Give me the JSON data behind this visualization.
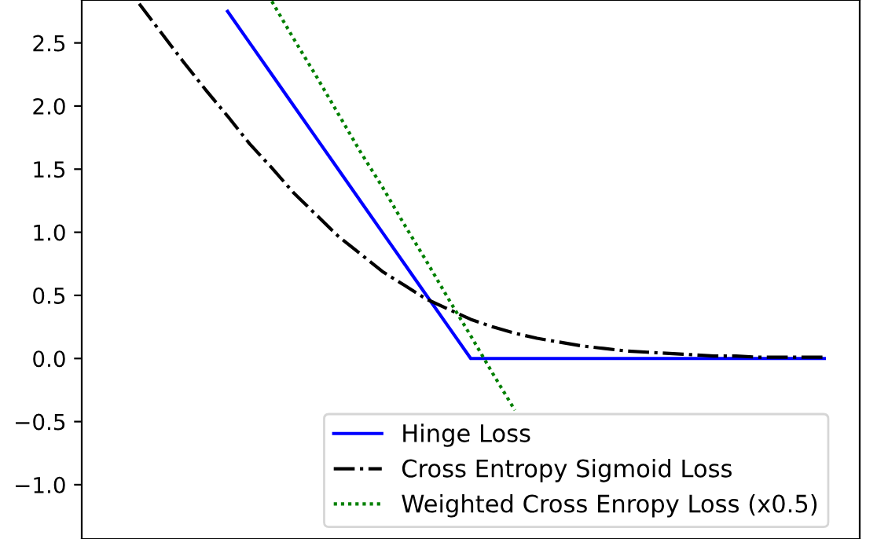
{
  "chart_data": {
    "type": "line",
    "categories": [
      null,
      null,
      null,
      null,
      null,
      null,
      null,
      null,
      null,
      null,
      null,
      null,
      null,
      null,
      null,
      null,
      null,
      null,
      null,
      null,
      null,
      null,
      null,
      null,
      null,
      null,
      null,
      null,
      null,
      null,
      null,
      null,
      null
    ],
    "ylim": [
      -1.43,
      2.84
    ],
    "yticks": [
      {
        "value": -1.0,
        "label": "−1.0"
      },
      {
        "value": -0.5,
        "label": "−0.5"
      },
      {
        "value": 0.0,
        "label": "0.0"
      },
      {
        "value": 0.5,
        "label": "0.5"
      },
      {
        "value": 1.0,
        "label": "1.0"
      },
      {
        "value": 1.5,
        "label": "1.5"
      },
      {
        "value": 2.0,
        "label": "2.0"
      },
      {
        "value": 2.5,
        "label": "2.5"
      }
    ],
    "tick_labels": "y",
    "grid": false,
    "legend": "bottom right",
    "series": [
      {
        "name": "Hinge Loss",
        "color": "#0000ff",
        "line_style": "solid",
        "values": [
          null,
          null,
          null,
          null,
          null,
          2.75,
          2.5,
          2.25,
          2.0,
          1.75,
          1.5,
          1.25,
          1.0,
          0.75,
          0.5,
          0.25,
          0.0,
          0.0,
          0.0,
          0.0,
          0.0,
          0.0,
          0.0,
          0.0,
          0.0,
          0.0,
          0.0,
          0.0,
          0.0,
          0.0,
          0.0,
          0.0,
          0.0
        ]
      },
      {
        "name": "Cross Entropy Sigmoid Loss",
        "color": "#000000",
        "line_style": "dashdot",
        "values": [
          null,
          2.81,
          2.58,
          2.35,
          2.13,
          1.92,
          1.7,
          1.51,
          1.31,
          1.14,
          0.97,
          0.83,
          0.69,
          0.58,
          0.47,
          0.39,
          0.31,
          0.25,
          0.2,
          0.16,
          0.13,
          0.1,
          0.08,
          0.06,
          0.05,
          0.04,
          0.03,
          0.02,
          0.02,
          0.01,
          0.01,
          0.01,
          0.01
        ]
      },
      {
        "name": "Weighted Cross Enropy Loss (x0.5)",
        "color": "#008000",
        "line_style": "dotted",
        "values": [
          null,
          null,
          null,
          null,
          null,
          null,
          null,
          2.83,
          2.53,
          2.24,
          1.94,
          1.64,
          1.36,
          1.06,
          0.77,
          0.47,
          0.18,
          -0.12,
          -0.41,
          null,
          null,
          null,
          null,
          null,
          null,
          null,
          null,
          null,
          null,
          null,
          null,
          null,
          null
        ]
      }
    ]
  }
}
